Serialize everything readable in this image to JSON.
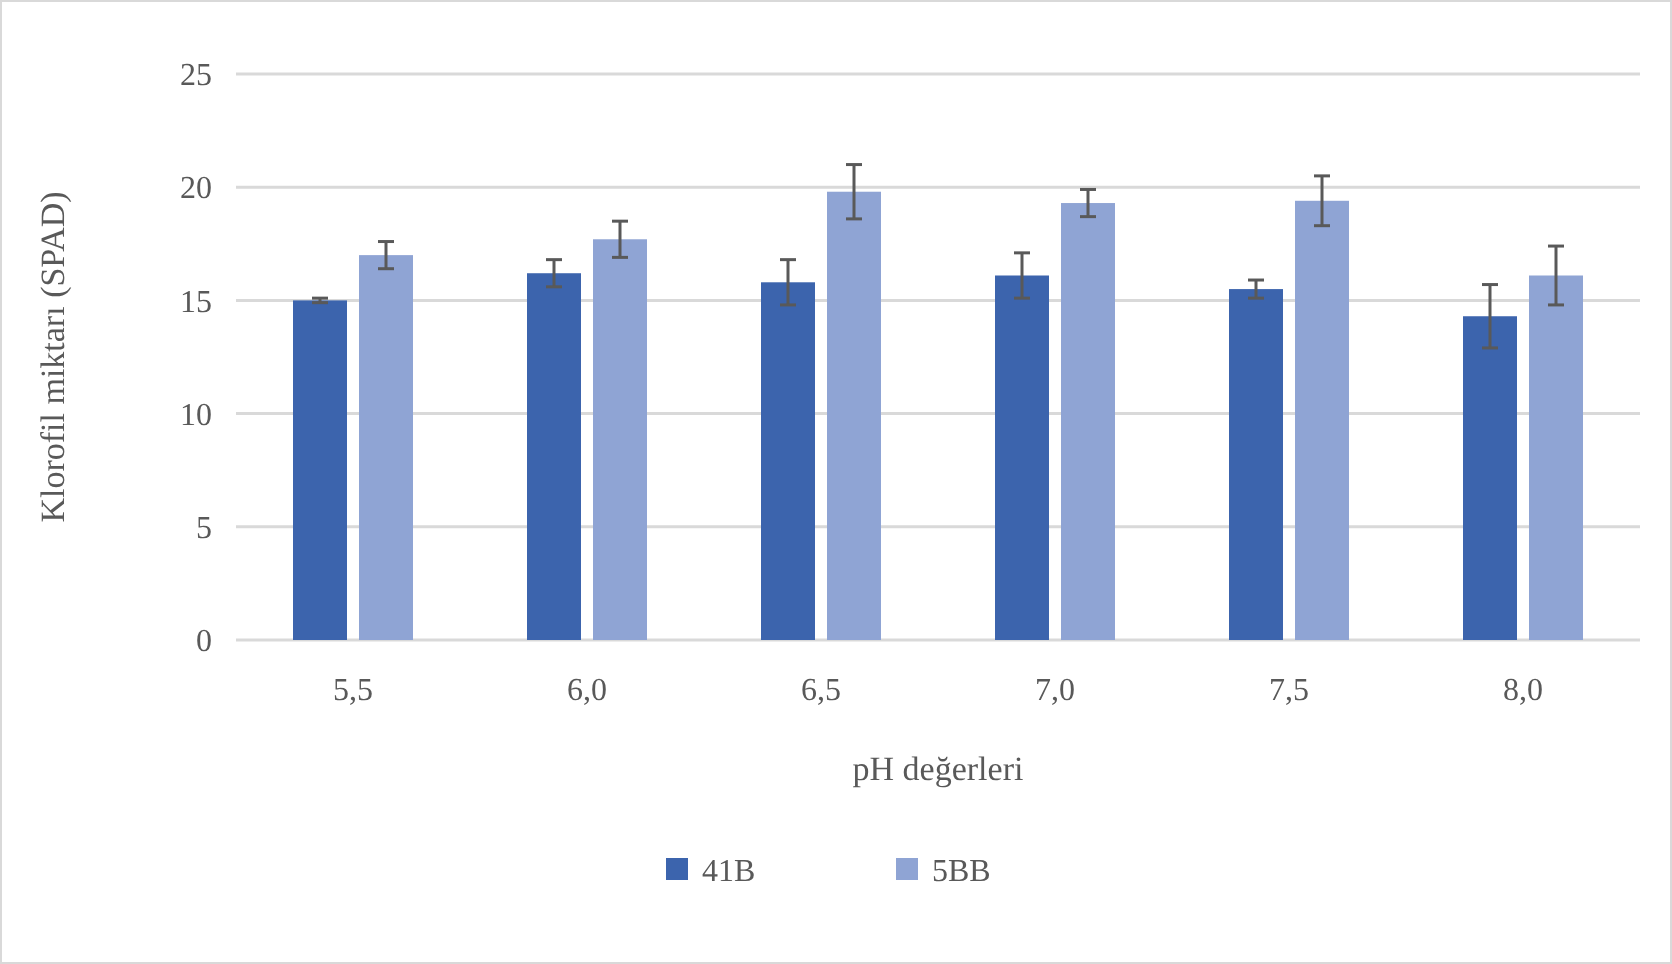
{
  "chart_data": {
    "type": "bar",
    "xlabel": "pH değerleri",
    "ylabel": "Klorofil miktarı (SPAD)",
    "categories": [
      "5,5",
      "6,0",
      "6,5",
      "7,0",
      "7,5",
      "8,0"
    ],
    "series": [
      {
        "name": "41B",
        "color": "#3c64ad",
        "values": [
          15.0,
          16.2,
          15.8,
          16.1,
          15.5,
          14.3
        ],
        "errors": [
          0.1,
          0.6,
          1.0,
          1.0,
          0.4,
          1.4
        ]
      },
      {
        "name": "5BB",
        "color": "#8fa4d4",
        "values": [
          17.0,
          17.7,
          19.8,
          19.3,
          19.4,
          16.1
        ],
        "errors": [
          0.6,
          0.8,
          1.2,
          0.6,
          1.1,
          1.3
        ]
      }
    ],
    "ylim": [
      0,
      25
    ],
    "yticks": [
      0,
      5,
      10,
      15,
      20,
      25
    ],
    "grid": "y",
    "legend": "bottom"
  }
}
